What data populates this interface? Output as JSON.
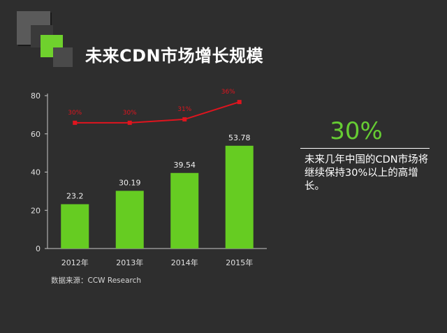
{
  "page": {
    "title": "未来CDN市场增长规模",
    "source": "数据来源：CCW Research",
    "highlight_value": "30%",
    "description": "未来几年中国的CDN市场将继续保持30%以上的高增长。"
  },
  "colors": {
    "background": "#2e2e2e",
    "bar": "#66cc22",
    "line": "#e0141e",
    "accent": "#66cc33",
    "text": "#ffffff"
  },
  "chart_data": {
    "type": "bar",
    "title": "",
    "xlabel": "",
    "ylabel": "",
    "categories": [
      "2012年",
      "2013年",
      "2014年",
      "2015年"
    ],
    "ylim": [
      0,
      80
    ],
    "yticks": [
      0,
      20,
      40,
      60,
      80
    ],
    "grid": false,
    "series": [
      {
        "type": "bar",
        "values": [
          23.2,
          30.19,
          39.54,
          53.78
        ],
        "labels": [
          "23.2",
          "30.19",
          "39.54",
          "53.78"
        ]
      },
      {
        "type": "line",
        "values": [
          30,
          30,
          31,
          36
        ],
        "labels": [
          "30%",
          "30%",
          "31%",
          "36%"
        ]
      }
    ]
  }
}
